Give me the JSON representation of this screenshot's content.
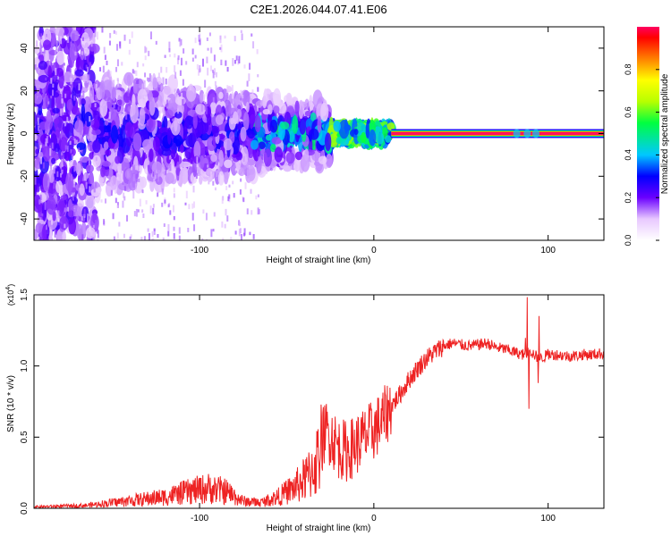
{
  "title": "C2E1.2026.044.07.41.E06",
  "chart_data": [
    {
      "type": "heatmap",
      "xlabel": "Height of straight line (km)",
      "ylabel": "Frequency (Hz)",
      "xlim": [
        -195,
        132
      ],
      "ylim": [
        -50,
        50
      ],
      "xticks": [
        -100,
        0,
        100
      ],
      "yticks": [
        -40,
        -20,
        0,
        20,
        40
      ],
      "colorbar": {
        "label": "Normalized spectral amplitude",
        "range": [
          0,
          1
        ],
        "ticks": [
          0.0,
          0.2,
          0.4,
          0.6,
          0.8
        ]
      },
      "description_values": {
        "steady_line_frequency_hz": 0,
        "steady_line_start_km": 10,
        "steady_line_amplitude": 0.95,
        "broadband_region_km": [
          -195,
          -25
        ]
      }
    },
    {
      "type": "line",
      "xlabel": "Height of straight line (km)",
      "ylabel": "SNR (10 * v/v)",
      "y_multiplier": "(x10^4)",
      "xlim": [
        -195,
        132
      ],
      "ylim": [
        0,
        1.5
      ],
      "xticks": [
        -100,
        0,
        100
      ],
      "yticks": [
        0.0,
        0.5,
        1.0,
        1.5
      ],
      "series": [
        {
          "color": "#ee2222",
          "x": [
            -195,
            -180,
            -165,
            -150,
            -135,
            -120,
            -105,
            -95,
            -85,
            -75,
            -65,
            -55,
            -45,
            -38,
            -32,
            -28,
            -24,
            -20,
            -15,
            -10,
            -5,
            0,
            5,
            10,
            15,
            20,
            25,
            30,
            35,
            40,
            45,
            50,
            55,
            60,
            65,
            70,
            75,
            80,
            85,
            90,
            95,
            100,
            105,
            110,
            115,
            120,
            125,
            132
          ],
          "values": [
            0.01,
            0.015,
            0.02,
            0.04,
            0.06,
            0.08,
            0.12,
            0.14,
            0.12,
            0.05,
            0.04,
            0.08,
            0.15,
            0.22,
            0.35,
            0.55,
            0.5,
            0.42,
            0.4,
            0.45,
            0.5,
            0.55,
            0.62,
            0.72,
            0.8,
            0.9,
            0.98,
            1.05,
            1.1,
            1.14,
            1.16,
            1.15,
            1.14,
            1.15,
            1.16,
            1.13,
            1.12,
            1.1,
            1.08,
            1.1,
            1.05,
            1.08,
            1.08,
            1.07,
            1.07,
            1.08,
            1.08,
            1.09
          ]
        }
      ]
    }
  ]
}
